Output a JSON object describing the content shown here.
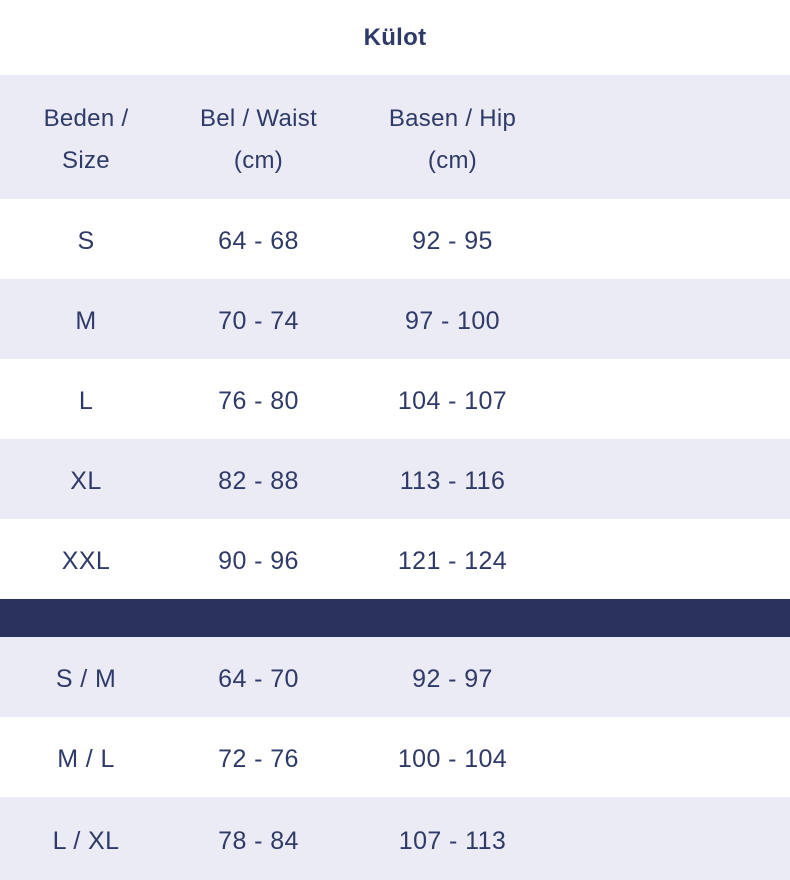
{
  "title": "Külot",
  "colors": {
    "text": "#2f3a68",
    "row_white": "#ffffff",
    "row_lavender": "#eaebf4",
    "divider_navy": "#2b335d"
  },
  "header": {
    "size_line1": "Beden /",
    "size_line2": "Size",
    "waist_line1": "Bel / Waist",
    "waist_line2": "(cm)",
    "hip_line1": "Basen / Hip",
    "hip_line2": "(cm)"
  },
  "rows": [
    {
      "size": "S",
      "waist": "64 - 68",
      "hip": "92 - 95"
    },
    {
      "size": "M",
      "waist": "70 - 74",
      "hip": "97 - 100"
    },
    {
      "size": "L",
      "waist": "76 - 80",
      "hip": "104 - 107"
    },
    {
      "size": "XL",
      "waist": "82 - 88",
      "hip": "113 - 116"
    },
    {
      "size": "XXL",
      "waist": "90 - 96",
      "hip": "121 - 124"
    }
  ],
  "combo_rows": [
    {
      "size": "S / M",
      "waist": "64 - 70",
      "hip": "92 - 97"
    },
    {
      "size": "M / L",
      "waist": "72 - 76",
      "hip": "100 - 104"
    },
    {
      "size": "L / XL",
      "waist": "78 - 84",
      "hip": "107 - 113"
    }
  ]
}
